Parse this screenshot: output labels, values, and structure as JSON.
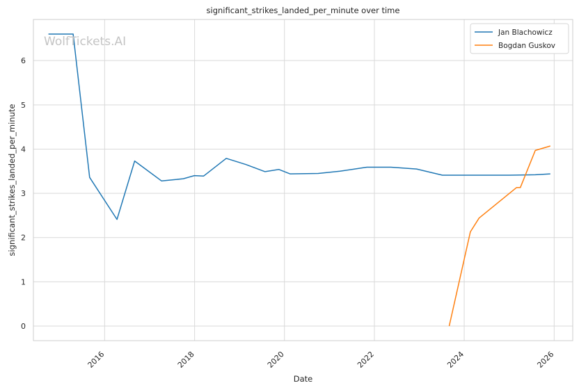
{
  "chart_data": {
    "type": "line",
    "title": "significant_strikes_landed_per_minute over time",
    "xlabel": "Date",
    "ylabel": "significant_strikes_landed_per_minute",
    "watermark": "WolfTickets.AI",
    "xlim": [
      "2014-06-01",
      "2026-06-01"
    ],
    "ylim": [
      -0.33,
      6.93
    ],
    "x_ticks": [
      "2016",
      "2018",
      "2020",
      "2022",
      "2024",
      "2026"
    ],
    "y_ticks": [
      0,
      1,
      2,
      3,
      4,
      5,
      6
    ],
    "grid": true,
    "legend": "top-right",
    "series": [
      {
        "name": "Jan Blachowicz",
        "color": "#1f77b4",
        "points": [
          [
            "2014-10-01",
            6.6
          ],
          [
            "2015-04-20",
            6.6
          ],
          [
            "2015-09-01",
            3.36
          ],
          [
            "2016-04-10",
            2.41
          ],
          [
            "2016-09-01",
            3.73
          ],
          [
            "2017-04-08",
            3.28
          ],
          [
            "2017-10-01",
            3.33
          ],
          [
            "2017-12-30",
            3.4
          ],
          [
            "2018-03-15",
            3.39
          ],
          [
            "2018-09-15",
            3.79
          ],
          [
            "2019-02-23",
            3.65
          ],
          [
            "2019-07-27",
            3.49
          ],
          [
            "2019-11-16",
            3.54
          ],
          [
            "2020-02-15",
            3.44
          ],
          [
            "2020-10-01",
            3.45
          ],
          [
            "2021-03-27",
            3.5
          ],
          [
            "2021-11-01",
            3.59
          ],
          [
            "2022-05-15",
            3.59
          ],
          [
            "2022-12-10",
            3.55
          ],
          [
            "2023-07-08",
            3.41
          ],
          [
            "2025-01-01",
            3.41
          ],
          [
            "2025-08-01",
            3.42
          ],
          [
            "2025-12-01",
            3.44
          ]
        ]
      },
      {
        "name": "Bogdan Guskov",
        "color": "#ff7f0e",
        "points": [
          [
            "2023-09-01",
            0.0
          ],
          [
            "2024-02-20",
            2.13
          ],
          [
            "2024-05-01",
            2.44
          ],
          [
            "2025-03-01",
            3.13
          ],
          [
            "2025-04-01",
            3.13
          ],
          [
            "2025-08-01",
            3.97
          ],
          [
            "2025-12-01",
            4.07
          ]
        ]
      }
    ]
  }
}
